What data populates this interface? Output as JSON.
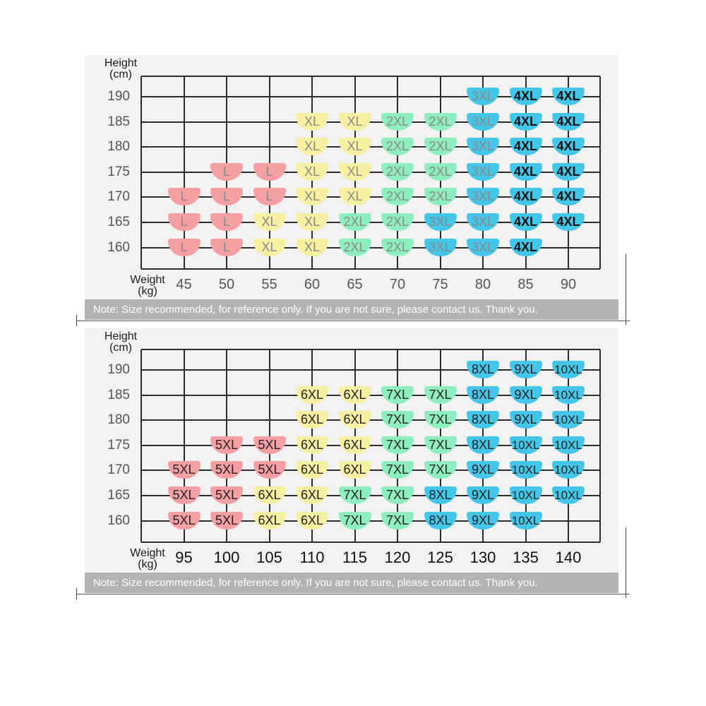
{
  "colors": {
    "panel_background": "#f2f2f2",
    "note_bar": "#b3b3b3",
    "grid": "#2b2b2b",
    "size_red": "#f59fa3",
    "size_yellow": "#f7f0a3",
    "size_green": "#8feec0",
    "size_blue": "#44c6e8"
  },
  "chart_data": [
    {
      "type": "table",
      "ylabel": "Height (cm)",
      "xlabel": "Weight (kg)",
      "y_values": [
        190,
        185,
        180,
        175,
        170,
        165,
        160
      ],
      "x_values": [
        45,
        50,
        55,
        60,
        65,
        70,
        75,
        80,
        85,
        90
      ],
      "cells": [
        {
          "weight": 80,
          "height": 190,
          "size": "3XL",
          "color": "blue"
        },
        {
          "weight": 85,
          "height": 190,
          "size": "4XL",
          "color": "blue"
        },
        {
          "weight": 90,
          "height": 190,
          "size": "4XL",
          "color": "blue"
        },
        {
          "weight": 60,
          "height": 185,
          "size": "XL",
          "color": "yellow"
        },
        {
          "weight": 65,
          "height": 185,
          "size": "XL",
          "color": "yellow"
        },
        {
          "weight": 70,
          "height": 185,
          "size": "2XL",
          "color": "green"
        },
        {
          "weight": 75,
          "height": 185,
          "size": "2XL",
          "color": "green"
        },
        {
          "weight": 80,
          "height": 185,
          "size": "3XL",
          "color": "blue"
        },
        {
          "weight": 85,
          "height": 185,
          "size": "4XL",
          "color": "blue"
        },
        {
          "weight": 90,
          "height": 185,
          "size": "4XL",
          "color": "blue"
        },
        {
          "weight": 60,
          "height": 180,
          "size": "XL",
          "color": "yellow"
        },
        {
          "weight": 65,
          "height": 180,
          "size": "XL",
          "color": "yellow"
        },
        {
          "weight": 70,
          "height": 180,
          "size": "2XL",
          "color": "green"
        },
        {
          "weight": 75,
          "height": 180,
          "size": "2XL",
          "color": "green"
        },
        {
          "weight": 80,
          "height": 180,
          "size": "3XL",
          "color": "blue"
        },
        {
          "weight": 85,
          "height": 180,
          "size": "4XL",
          "color": "blue"
        },
        {
          "weight": 90,
          "height": 180,
          "size": "4XL",
          "color": "blue"
        },
        {
          "weight": 50,
          "height": 175,
          "size": "L",
          "color": "red"
        },
        {
          "weight": 55,
          "height": 175,
          "size": "L",
          "color": "red"
        },
        {
          "weight": 60,
          "height": 175,
          "size": "XL",
          "color": "yellow"
        },
        {
          "weight": 65,
          "height": 175,
          "size": "XL",
          "color": "yellow"
        },
        {
          "weight": 70,
          "height": 175,
          "size": "2XL",
          "color": "green"
        },
        {
          "weight": 75,
          "height": 175,
          "size": "2XL",
          "color": "green"
        },
        {
          "weight": 80,
          "height": 175,
          "size": "3XL",
          "color": "blue"
        },
        {
          "weight": 85,
          "height": 175,
          "size": "4XL",
          "color": "blue"
        },
        {
          "weight": 90,
          "height": 175,
          "size": "4XL",
          "color": "blue"
        },
        {
          "weight": 45,
          "height": 170,
          "size": "L",
          "color": "red"
        },
        {
          "weight": 50,
          "height": 170,
          "size": "L",
          "color": "red"
        },
        {
          "weight": 55,
          "height": 170,
          "size": "L",
          "color": "red"
        },
        {
          "weight": 60,
          "height": 170,
          "size": "XL",
          "color": "yellow"
        },
        {
          "weight": 65,
          "height": 170,
          "size": "XL",
          "color": "yellow"
        },
        {
          "weight": 70,
          "height": 170,
          "size": "2XL",
          "color": "green"
        },
        {
          "weight": 75,
          "height": 170,
          "size": "2XL",
          "color": "green"
        },
        {
          "weight": 80,
          "height": 170,
          "size": "3XL",
          "color": "blue"
        },
        {
          "weight": 85,
          "height": 170,
          "size": "4XL",
          "color": "blue"
        },
        {
          "weight": 90,
          "height": 170,
          "size": "4XL",
          "color": "blue"
        },
        {
          "weight": 45,
          "height": 165,
          "size": "L",
          "color": "red"
        },
        {
          "weight": 50,
          "height": 165,
          "size": "L",
          "color": "red"
        },
        {
          "weight": 55,
          "height": 165,
          "size": "XL",
          "color": "yellow"
        },
        {
          "weight": 60,
          "height": 165,
          "size": "XL",
          "color": "yellow"
        },
        {
          "weight": 65,
          "height": 165,
          "size": "2XL",
          "color": "green"
        },
        {
          "weight": 70,
          "height": 165,
          "size": "2XL",
          "color": "green"
        },
        {
          "weight": 75,
          "height": 165,
          "size": "3XL",
          "color": "blue"
        },
        {
          "weight": 80,
          "height": 165,
          "size": "3XL",
          "color": "blue"
        },
        {
          "weight": 85,
          "height": 165,
          "size": "4XL",
          "color": "blue"
        },
        {
          "weight": 90,
          "height": 165,
          "size": "4XL",
          "color": "blue"
        },
        {
          "weight": 45,
          "height": 160,
          "size": "L",
          "color": "red"
        },
        {
          "weight": 50,
          "height": 160,
          "size": "L",
          "color": "red"
        },
        {
          "weight": 55,
          "height": 160,
          "size": "XL",
          "color": "yellow"
        },
        {
          "weight": 60,
          "height": 160,
          "size": "XL",
          "color": "yellow"
        },
        {
          "weight": 65,
          "height": 160,
          "size": "2XL",
          "color": "green"
        },
        {
          "weight": 70,
          "height": 160,
          "size": "2XL",
          "color": "green"
        },
        {
          "weight": 75,
          "height": 160,
          "size": "3XL",
          "color": "blue"
        },
        {
          "weight": 80,
          "height": 160,
          "size": "3XL",
          "color": "blue"
        },
        {
          "weight": 85,
          "height": 160,
          "size": "4XL",
          "color": "blue"
        }
      ],
      "note": "Note: Size recommended, for reference only. If you are not sure, please contact us. Thank you."
    },
    {
      "type": "table",
      "ylabel": "Height (cm)",
      "xlabel": "Weight (kg)",
      "y_values": [
        190,
        185,
        180,
        175,
        170,
        165,
        160
      ],
      "x_values": [
        95,
        100,
        105,
        110,
        115,
        120,
        125,
        130,
        135,
        140
      ],
      "cells": [
        {
          "weight": 130,
          "height": 190,
          "size": "8XL",
          "color": "blue"
        },
        {
          "weight": 135,
          "height": 190,
          "size": "9XL",
          "color": "blue"
        },
        {
          "weight": 140,
          "height": 190,
          "size": "10XL",
          "color": "blue"
        },
        {
          "weight": 110,
          "height": 185,
          "size": "6XL",
          "color": "yellow"
        },
        {
          "weight": 115,
          "height": 185,
          "size": "6XL",
          "color": "yellow"
        },
        {
          "weight": 120,
          "height": 185,
          "size": "7XL",
          "color": "green"
        },
        {
          "weight": 125,
          "height": 185,
          "size": "7XL",
          "color": "green"
        },
        {
          "weight": 130,
          "height": 185,
          "size": "8XL",
          "color": "blue"
        },
        {
          "weight": 135,
          "height": 185,
          "size": "9XL",
          "color": "blue"
        },
        {
          "weight": 140,
          "height": 185,
          "size": "10XL",
          "color": "blue"
        },
        {
          "weight": 110,
          "height": 180,
          "size": "6XL",
          "color": "yellow"
        },
        {
          "weight": 115,
          "height": 180,
          "size": "6XL",
          "color": "yellow"
        },
        {
          "weight": 120,
          "height": 180,
          "size": "7XL",
          "color": "green"
        },
        {
          "weight": 125,
          "height": 180,
          "size": "7XL",
          "color": "green"
        },
        {
          "weight": 130,
          "height": 180,
          "size": "8XL",
          "color": "blue"
        },
        {
          "weight": 135,
          "height": 180,
          "size": "9XL",
          "color": "blue"
        },
        {
          "weight": 140,
          "height": 180,
          "size": "10XL",
          "color": "blue"
        },
        {
          "weight": 100,
          "height": 175,
          "size": "5XL",
          "color": "red"
        },
        {
          "weight": 105,
          "height": 175,
          "size": "5XL",
          "color": "red"
        },
        {
          "weight": 110,
          "height": 175,
          "size": "6XL",
          "color": "yellow"
        },
        {
          "weight": 115,
          "height": 175,
          "size": "6XL",
          "color": "yellow"
        },
        {
          "weight": 120,
          "height": 175,
          "size": "7XL",
          "color": "green"
        },
        {
          "weight": 125,
          "height": 175,
          "size": "7XL",
          "color": "green"
        },
        {
          "weight": 130,
          "height": 175,
          "size": "8XL",
          "color": "blue"
        },
        {
          "weight": 135,
          "height": 175,
          "size": "10XL",
          "color": "blue"
        },
        {
          "weight": 140,
          "height": 175,
          "size": "10XL",
          "color": "blue"
        },
        {
          "weight": 95,
          "height": 170,
          "size": "5XL",
          "color": "red"
        },
        {
          "weight": 100,
          "height": 170,
          "size": "5XL",
          "color": "red"
        },
        {
          "weight": 105,
          "height": 170,
          "size": "5XL",
          "color": "red"
        },
        {
          "weight": 110,
          "height": 170,
          "size": "6XL",
          "color": "yellow"
        },
        {
          "weight": 115,
          "height": 170,
          "size": "6XL",
          "color": "yellow"
        },
        {
          "weight": 120,
          "height": 170,
          "size": "7XL",
          "color": "green"
        },
        {
          "weight": 125,
          "height": 170,
          "size": "7XL",
          "color": "green"
        },
        {
          "weight": 130,
          "height": 170,
          "size": "9XL",
          "color": "blue"
        },
        {
          "weight": 135,
          "height": 170,
          "size": "10XL",
          "color": "blue"
        },
        {
          "weight": 140,
          "height": 170,
          "size": "10XL",
          "color": "blue"
        },
        {
          "weight": 95,
          "height": 165,
          "size": "5XL",
          "color": "red"
        },
        {
          "weight": 100,
          "height": 165,
          "size": "5XL",
          "color": "red"
        },
        {
          "weight": 105,
          "height": 165,
          "size": "6XL",
          "color": "yellow"
        },
        {
          "weight": 110,
          "height": 165,
          "size": "6XL",
          "color": "yellow"
        },
        {
          "weight": 115,
          "height": 165,
          "size": "7XL",
          "color": "green"
        },
        {
          "weight": 120,
          "height": 165,
          "size": "7XL",
          "color": "green"
        },
        {
          "weight": 125,
          "height": 165,
          "size": "8XL",
          "color": "blue"
        },
        {
          "weight": 130,
          "height": 165,
          "size": "9XL",
          "color": "blue"
        },
        {
          "weight": 135,
          "height": 165,
          "size": "10XL",
          "color": "blue"
        },
        {
          "weight": 140,
          "height": 165,
          "size": "10XL",
          "color": "blue"
        },
        {
          "weight": 95,
          "height": 160,
          "size": "5XL",
          "color": "red"
        },
        {
          "weight": 100,
          "height": 160,
          "size": "5XL",
          "color": "red"
        },
        {
          "weight": 105,
          "height": 160,
          "size": "6XL",
          "color": "yellow"
        },
        {
          "weight": 110,
          "height": 160,
          "size": "6XL",
          "color": "yellow"
        },
        {
          "weight": 115,
          "height": 160,
          "size": "7XL",
          "color": "green"
        },
        {
          "weight": 120,
          "height": 160,
          "size": "7XL",
          "color": "green"
        },
        {
          "weight": 125,
          "height": 160,
          "size": "8XL",
          "color": "blue"
        },
        {
          "weight": 130,
          "height": 160,
          "size": "9XL",
          "color": "blue"
        },
        {
          "weight": 135,
          "height": 160,
          "size": "10XL",
          "color": "blue"
        }
      ],
      "note": "Note: Size recommended, for reference only. If you are not sure, please contact us. Thank you."
    }
  ]
}
